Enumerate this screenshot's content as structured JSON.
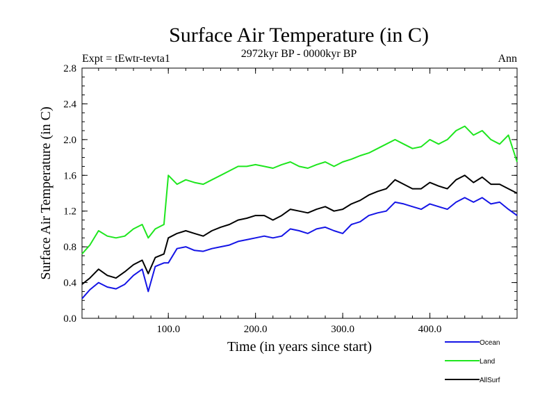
{
  "chart_data": {
    "type": "line",
    "title": "Surface Air Temperature (in C)",
    "subtitle": "2972kyr BP - 0000kyr BP",
    "left_label": "Expt = tEwtr-tevta1",
    "right_label": "Ann",
    "xlabel": "Time (in years since start)",
    "ylabel": "Surface Air Temperature (in C)",
    "xlim": [
      1,
      500
    ],
    "ylim": [
      0,
      2.8
    ],
    "x_ticks": [
      {
        "value": 100,
        "label": "100.0"
      },
      {
        "value": 200,
        "label": "200.0"
      },
      {
        "value": 300,
        "label": "300.0"
      },
      {
        "value": 400,
        "label": "400.0"
      }
    ],
    "y_ticks": [
      {
        "value": 0.0,
        "label": "0.0"
      },
      {
        "value": 0.4,
        "label": "0.4"
      },
      {
        "value": 0.8,
        "label": "0.8"
      },
      {
        "value": 1.2,
        "label": "1.2"
      },
      {
        "value": 1.6,
        "label": "1.6"
      },
      {
        "value": 2.0,
        "label": "2.0"
      },
      {
        "value": 2.4,
        "label": "2.4"
      },
      {
        "value": 2.8,
        "label": "2.8"
      }
    ],
    "x": [
      1,
      10,
      20,
      30,
      40,
      50,
      60,
      70,
      77,
      85,
      95,
      100,
      110,
      120,
      130,
      140,
      150,
      160,
      170,
      180,
      190,
      200,
      210,
      220,
      230,
      240,
      250,
      260,
      270,
      280,
      290,
      300,
      310,
      320,
      330,
      340,
      350,
      360,
      370,
      380,
      390,
      400,
      410,
      420,
      430,
      440,
      450,
      460,
      470,
      480,
      490,
      500
    ],
    "series": [
      {
        "name": "Ocean",
        "color": "#1414e6",
        "values": [
          0.22,
          0.32,
          0.4,
          0.35,
          0.33,
          0.38,
          0.48,
          0.55,
          0.3,
          0.58,
          0.62,
          0.62,
          0.78,
          0.8,
          0.76,
          0.75,
          0.78,
          0.8,
          0.82,
          0.86,
          0.88,
          0.9,
          0.92,
          0.9,
          0.92,
          1.0,
          0.98,
          0.95,
          1.0,
          1.02,
          0.98,
          0.95,
          1.05,
          1.08,
          1.15,
          1.18,
          1.2,
          1.3,
          1.28,
          1.25,
          1.22,
          1.28,
          1.25,
          1.22,
          1.3,
          1.35,
          1.3,
          1.35,
          1.28,
          1.3,
          1.22,
          1.15
        ]
      },
      {
        "name": "Land",
        "color": "#1ee61e",
        "values": [
          0.72,
          0.82,
          0.98,
          0.92,
          0.9,
          0.92,
          1.0,
          1.05,
          0.9,
          1.0,
          1.05,
          1.6,
          1.5,
          1.55,
          1.52,
          1.5,
          1.55,
          1.6,
          1.65,
          1.7,
          1.7,
          1.72,
          1.7,
          1.68,
          1.72,
          1.75,
          1.7,
          1.68,
          1.72,
          1.75,
          1.7,
          1.75,
          1.78,
          1.82,
          1.85,
          1.9,
          1.95,
          2.0,
          1.95,
          1.9,
          1.92,
          2.0,
          1.95,
          2.0,
          2.1,
          2.15,
          2.05,
          2.1,
          2.0,
          1.95,
          2.05,
          1.75
        ]
      },
      {
        "name": "AllSurf",
        "color": "#000000",
        "values": [
          0.38,
          0.45,
          0.55,
          0.48,
          0.45,
          0.52,
          0.6,
          0.65,
          0.5,
          0.68,
          0.72,
          0.9,
          0.95,
          0.98,
          0.95,
          0.92,
          0.98,
          1.02,
          1.05,
          1.1,
          1.12,
          1.15,
          1.15,
          1.1,
          1.15,
          1.22,
          1.2,
          1.18,
          1.22,
          1.25,
          1.2,
          1.22,
          1.28,
          1.32,
          1.38,
          1.42,
          1.45,
          1.55,
          1.5,
          1.45,
          1.45,
          1.52,
          1.48,
          1.45,
          1.55,
          1.6,
          1.52,
          1.58,
          1.5,
          1.5,
          1.45,
          1.4
        ]
      }
    ],
    "legend_position": "bottom-right"
  }
}
